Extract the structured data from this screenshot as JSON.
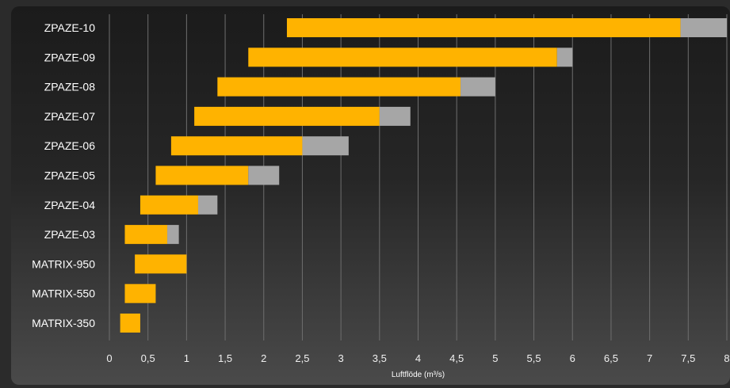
{
  "chart_data": {
    "type": "bar",
    "orientation": "horizontal",
    "stacked": "floating",
    "categories": [
      "ZPAZE-10",
      "ZPAZE-09",
      "ZPAZE-08",
      "ZPAZE-07",
      "ZPAZE-06",
      "ZPAZE-05",
      "ZPAZE-04",
      "ZPAZE-03",
      "MATRIX-950",
      "MATRIX-550",
      "MATRIX-350"
    ],
    "series": [
      {
        "color": "#FFB300",
        "ranges": [
          [
            2.3,
            7.4
          ],
          [
            1.8,
            5.8
          ],
          [
            1.4,
            4.55
          ],
          [
            1.1,
            3.5
          ],
          [
            0.8,
            2.5
          ],
          [
            0.6,
            1.8
          ],
          [
            0.4,
            1.15
          ],
          [
            0.2,
            0.75
          ],
          [
            0.33,
            1.0
          ],
          [
            0.2,
            0.6
          ],
          [
            0.14,
            0.4
          ]
        ]
      },
      {
        "color": "#A6A6A6",
        "ranges": [
          [
            7.4,
            8.0
          ],
          [
            5.8,
            6.0
          ],
          [
            4.55,
            5.0
          ],
          [
            3.5,
            3.9
          ],
          [
            2.5,
            3.1
          ],
          [
            1.8,
            2.2
          ],
          [
            1.15,
            1.4
          ],
          [
            0.75,
            0.9
          ],
          null,
          null,
          null
        ]
      }
    ],
    "xlim": [
      0,
      8
    ],
    "xticks": [
      "0",
      "0,5",
      "1",
      "1,5",
      "2",
      "2,5",
      "3",
      "3,5",
      "4",
      "4,5",
      "5",
      "5,5",
      "6",
      "6,5",
      "7",
      "7,5",
      "8"
    ],
    "xlabel": "Luftflöde (m³/s)",
    "grid": "vertical"
  }
}
